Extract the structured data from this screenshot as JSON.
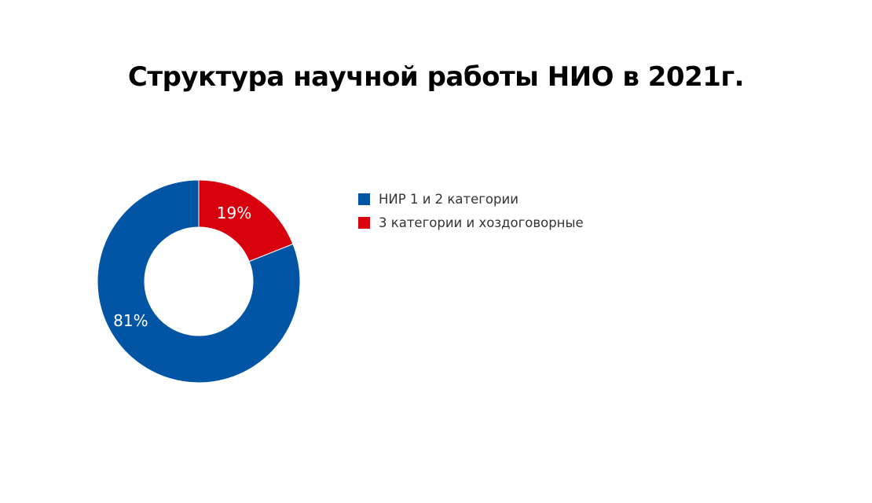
{
  "chart_data": {
    "type": "pie",
    "title": "Структура научной работы НИО в 2021г.",
    "categories": [
      "НИР 1 и 2 категории",
      "3 категории и хоздоговорные"
    ],
    "values": [
      81,
      19
    ],
    "labels": [
      "81%",
      "19%"
    ],
    "colors": [
      "#0155A4",
      "#D9000D"
    ],
    "legend": "right"
  }
}
